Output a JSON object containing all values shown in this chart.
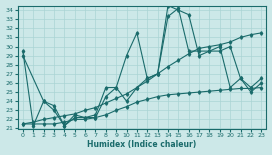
{
  "xlabel": "Humidex (Indice chaleur)",
  "xlim": [
    -0.5,
    23.5
  ],
  "ylim": [
    21,
    34.5
  ],
  "yticks": [
    21,
    22,
    23,
    24,
    25,
    26,
    27,
    28,
    29,
    30,
    31,
    32,
    33,
    34
  ],
  "xticks": [
    0,
    1,
    2,
    3,
    4,
    5,
    6,
    7,
    8,
    9,
    10,
    11,
    12,
    13,
    14,
    15,
    16,
    17,
    18,
    19,
    20,
    21,
    22,
    23
  ],
  "bg_color": "#cce8e8",
  "line_color": "#1a6b6b",
  "grid_color": "#aad4d4",
  "lines": [
    {
      "x": [
        0,
        1,
        2,
        3,
        4,
        5,
        6,
        7,
        8,
        9,
        10,
        11,
        12,
        13,
        14,
        15,
        16,
        17,
        18,
        19,
        20,
        21,
        22,
        23
      ],
      "y": [
        29.5,
        21.3,
        24.0,
        23.5,
        21.3,
        22.2,
        22.2,
        22.2,
        24.5,
        25.5,
        29.0,
        31.5,
        26.5,
        27.0,
        34.5,
        34.0,
        33.5,
        29.0,
        29.5,
        29.5,
        30.0,
        26.5,
        25.5,
        26.5
      ]
    },
    {
      "x": [
        0,
        2,
        3,
        4,
        5,
        6,
        7,
        8,
        9,
        10,
        11,
        12,
        13,
        14,
        15,
        16,
        17,
        18,
        19,
        20,
        21,
        22,
        23
      ],
      "y": [
        29.0,
        24.0,
        23.0,
        21.3,
        22.5,
        22.2,
        22.5,
        25.5,
        25.5,
        24.0,
        25.5,
        26.5,
        27.0,
        33.3,
        34.2,
        29.5,
        29.5,
        29.5,
        30.0,
        25.5,
        26.5,
        25.0,
        26.0
      ]
    },
    {
      "x": [
        0,
        1,
        2,
        3,
        4,
        5,
        6,
        7,
        8,
        9,
        10,
        11,
        12,
        13,
        14,
        15,
        16,
        17,
        18,
        19,
        20,
        21,
        22,
        23
      ],
      "y": [
        21.5,
        21.5,
        21.5,
        21.5,
        21.7,
        22.0,
        22.0,
        22.2,
        22.5,
        23.0,
        23.4,
        23.9,
        24.2,
        24.5,
        24.7,
        24.8,
        24.9,
        25.0,
        25.1,
        25.2,
        25.3,
        25.4,
        25.4,
        25.5
      ]
    },
    {
      "x": [
        0,
        1,
        2,
        3,
        4,
        5,
        6,
        7,
        8,
        9,
        10,
        11,
        12,
        13,
        14,
        15,
        16,
        17,
        18,
        19,
        20,
        21,
        22,
        23
      ],
      "y": [
        21.5,
        21.7,
        22.0,
        22.2,
        22.4,
        22.6,
        23.0,
        23.3,
        23.8,
        24.3,
        24.8,
        25.5,
        26.2,
        27.0,
        27.8,
        28.5,
        29.2,
        29.8,
        30.0,
        30.2,
        30.5,
        31.0,
        31.3,
        31.5
      ]
    }
  ]
}
